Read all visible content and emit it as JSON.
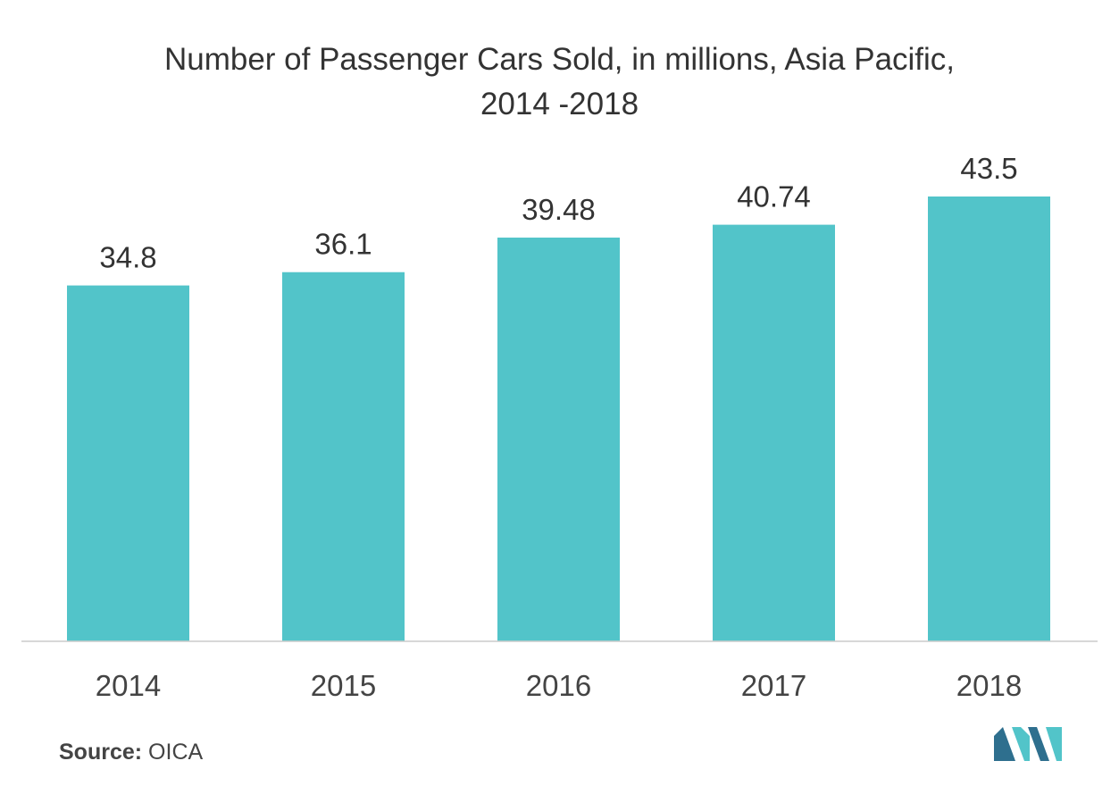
{
  "chart_data": {
    "type": "bar",
    "title_line1": "Number of Passenger Cars Sold, in millions, Asia Pacific,",
    "title_line2": "2014 -2018",
    "categories": [
      "2014",
      "2015",
      "2016",
      "2017",
      "2018"
    ],
    "values": [
      34.8,
      36.1,
      39.48,
      40.74,
      43.5
    ],
    "value_labels": [
      "34.8",
      "36.1",
      "39.48",
      "40.74",
      "43.5"
    ],
    "xlabel": "",
    "ylabel": "",
    "ylim": [
      0,
      43.5
    ],
    "grid": false,
    "legend": "none",
    "bar_color": "#52c4c9"
  },
  "source": {
    "label": "Source:",
    "value": "OICA"
  },
  "colors": {
    "logo_dark": "#2e6f8e",
    "logo_light": "#52c4c9"
  }
}
